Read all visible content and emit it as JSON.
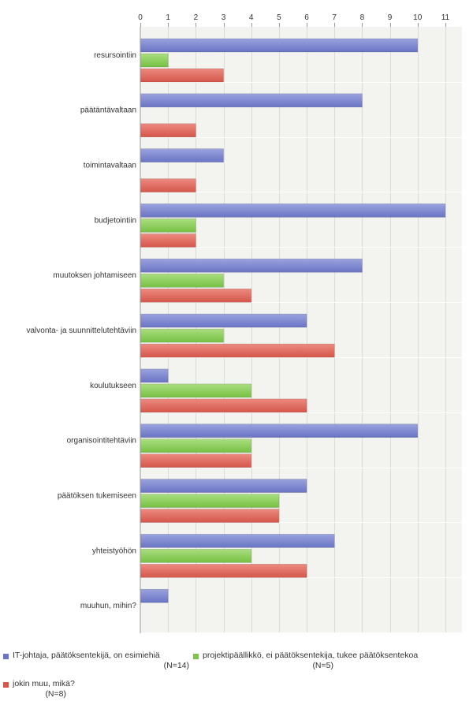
{
  "chart_data": {
    "type": "bar",
    "orientation": "horizontal",
    "xlim": [
      0,
      11.6
    ],
    "ticks": [
      0,
      1,
      2,
      3,
      4,
      5,
      6,
      7,
      8,
      9,
      10,
      11
    ],
    "grid": true,
    "legend_position": "bottom",
    "categories": [
      "resursointiin",
      "päätäntävaltaan",
      "toimintavaltaan",
      "budjetointiin",
      "muutoksen johtamiseen",
      "valvonta- ja suunnittelutehtäviin",
      "koulutukseen",
      "organisointitehtäviin",
      "päätöksen tukemiseen",
      "yhteistyöhön",
      "muuhun, mihin?"
    ],
    "series": [
      {
        "name": "IT-johtaja, päätöksentekijä, on esimiehiä",
        "n_label": "(N=14)",
        "color": "#7b86cf",
        "values": [
          10,
          8,
          3,
          11,
          8,
          6,
          1,
          10,
          6,
          7,
          1
        ]
      },
      {
        "name": "projektipäällikkö, ei päätöksentekija, tukee päätöksentekoa",
        "n_label": "(N=5)",
        "color": "#8fcf5e",
        "values": [
          1,
          0,
          0,
          2,
          3,
          3,
          4,
          4,
          5,
          4,
          0
        ]
      },
      {
        "name": "jokin muu, mikä?",
        "n_label": "(N=8)",
        "color": "#e0695d",
        "values": [
          3,
          2,
          2,
          2,
          4,
          7,
          6,
          4,
          5,
          6,
          0
        ]
      }
    ]
  }
}
